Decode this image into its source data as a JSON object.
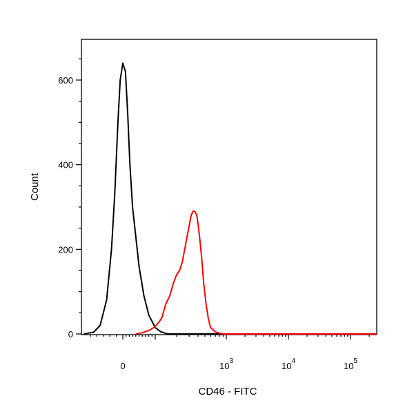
{
  "chart_data": {
    "type": "line",
    "title": "",
    "xlabel": "CD46 - FITC",
    "ylabel": "Count",
    "x_scale": "biexponential",
    "ylim": [
      0,
      680
    ],
    "grid": false,
    "legend": "none",
    "y_ticks": [
      {
        "value": 0,
        "label": "0"
      },
      {
        "value": 200,
        "label": "200"
      },
      {
        "value": 400,
        "label": "400"
      },
      {
        "value": 600,
        "label": "600"
      }
    ],
    "x_ticks": [
      {
        "value": 0,
        "base": "0",
        "exp": ""
      },
      {
        "value": 1000,
        "base": "10",
        "exp": "3"
      },
      {
        "value": 10000,
        "base": "10",
        "exp": "4"
      },
      {
        "value": 100000,
        "base": "10",
        "exp": "5"
      }
    ],
    "series": [
      {
        "color": "#000000",
        "x": [
          -120,
          -90,
          -70,
          -50,
          -35,
          -25,
          -15,
          -8,
          0,
          8,
          15,
          22,
          30,
          40,
          50,
          65,
          80,
          100,
          120,
          150
        ],
        "y": [
          0,
          4,
          20,
          80,
          200,
          330,
          500,
          600,
          640,
          620,
          520,
          400,
          300,
          230,
          160,
          90,
          45,
          15,
          5,
          0
        ]
      },
      {
        "color": "#ff0000",
        "x": [
          40,
          60,
          80,
          95,
          105,
          115,
          125,
          140,
          160,
          180,
          200,
          220,
          240,
          260,
          280,
          300,
          320,
          340,
          360,
          385,
          400,
          420,
          450,
          480,
          520,
          560,
          600,
          700,
          800,
          900,
          1000
        ],
        "y": [
          0,
          3,
          8,
          15,
          22,
          30,
          40,
          70,
          90,
          120,
          140,
          150,
          170,
          200,
          230,
          255,
          280,
          290,
          290,
          280,
          260,
          230,
          180,
          120,
          70,
          35,
          15,
          5,
          2,
          0,
          0
        ]
      }
    ]
  }
}
